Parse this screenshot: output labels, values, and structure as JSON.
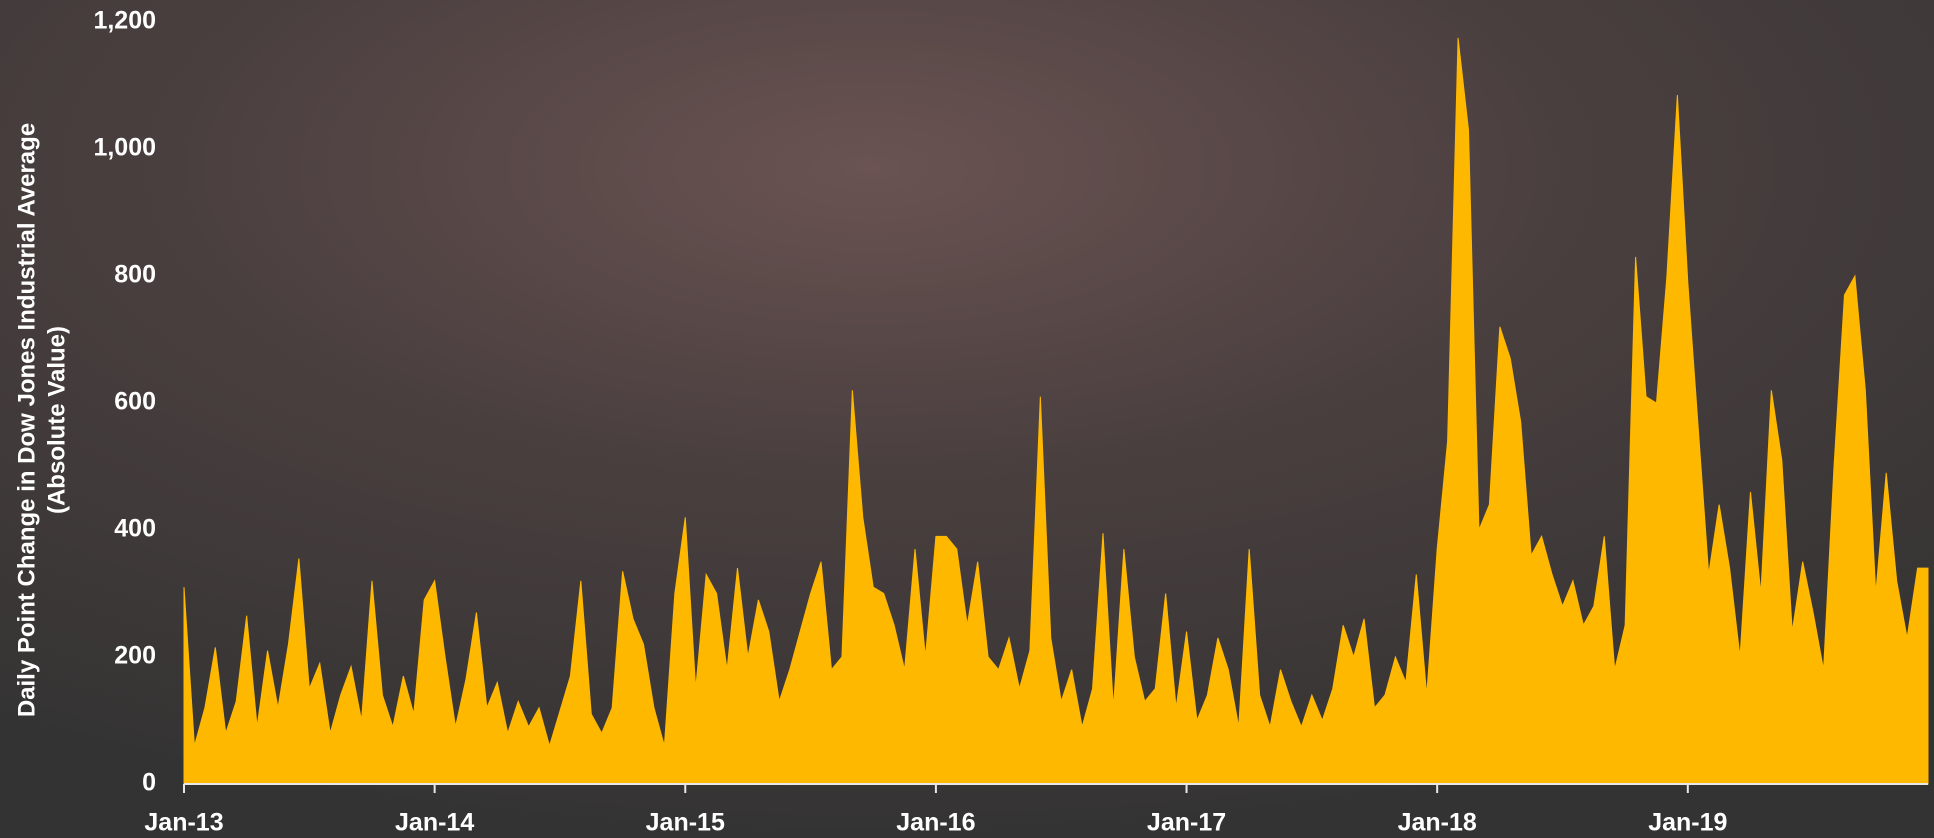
{
  "chart_data": {
    "type": "area",
    "y_label": [
      "Daily Point Change in Dow Jones Industrial Average",
      "(Absolute Value)"
    ],
    "color": "#ffb800",
    "x": [
      0,
      0.5,
      1,
      1.5,
      2,
      2.5,
      3,
      3.5,
      4,
      4.5,
      5,
      5.5,
      6,
      6.5,
      7,
      7.5,
      8,
      8.5,
      9,
      9.5,
      10,
      10.5,
      11,
      11.5,
      12,
      12.5,
      13,
      13.5,
      14,
      14.5,
      15,
      15.5,
      16,
      16.5,
      17,
      17.5,
      18,
      18.5,
      19,
      19.5,
      20,
      20.5,
      21,
      21.5,
      22,
      22.5,
      23,
      23.5,
      24,
      24.5,
      25,
      25.5,
      26,
      26.5,
      27,
      27.5,
      28,
      28.5,
      29,
      29.5,
      30,
      30.5,
      31,
      31.5,
      32,
      32.5,
      33,
      33.5,
      34,
      34.5,
      35,
      35.5,
      36,
      36.5,
      37,
      37.5,
      38,
      38.5,
      39,
      39.5,
      40,
      40.5,
      41,
      41.5,
      42,
      42.5,
      43,
      43.5,
      44,
      44.5,
      45,
      45.5,
      46,
      46.5,
      47,
      47.5,
      48,
      48.5,
      49,
      49.5,
      50,
      50.5,
      51,
      51.5,
      52,
      52.5,
      53,
      53.5,
      54,
      54.5,
      55,
      55.5,
      56,
      56.5,
      57,
      57.5,
      58,
      58.5,
      59,
      59.5,
      60,
      60.5,
      61,
      61.5,
      62,
      62.5,
      63,
      63.5,
      64,
      64.5,
      65,
      65.5,
      66,
      66.5,
      67,
      67.5,
      68,
      68.5,
      69,
      69.5,
      70,
      70.5,
      71,
      71.5,
      72,
      72.5,
      73,
      73.5,
      74,
      74.5,
      75,
      75.5,
      76,
      76.5,
      77,
      77.5,
      78,
      78.5,
      79,
      79.5,
      80,
      80.5,
      81,
      81.5,
      82,
      82.5,
      83,
      83.5
    ],
    "values": [
      310,
      60,
      120,
      215,
      80,
      130,
      265,
      90,
      210,
      120,
      220,
      355,
      150,
      190,
      80,
      140,
      185,
      100,
      320,
      140,
      90,
      170,
      110,
      290,
      320,
      200,
      90,
      165,
      270,
      120,
      160,
      80,
      130,
      90,
      120,
      60,
      115,
      170,
      320,
      110,
      80,
      120,
      335,
      260,
      220,
      120,
      60,
      300,
      420,
      150,
      330,
      300,
      180,
      340,
      200,
      290,
      240,
      130,
      180,
      240,
      300,
      350,
      180,
      200,
      620,
      420,
      310,
      300,
      250,
      180,
      370,
      200,
      390,
      390,
      370,
      250,
      350,
      200,
      180,
      230,
      150,
      210,
      610,
      230,
      130,
      180,
      90,
      150,
      395,
      120,
      370,
      200,
      130,
      150,
      300,
      120,
      240,
      100,
      140,
      230,
      180,
      90,
      370,
      140,
      90,
      180,
      130,
      90,
      140,
      100,
      150,
      250,
      200,
      260,
      120,
      140,
      200,
      160,
      330,
      140,
      370,
      540,
      1175,
      1030,
      400,
      440,
      720,
      670,
      570,
      360,
      390,
      330,
      280,
      320,
      250,
      280,
      390,
      180,
      250,
      830,
      610,
      600,
      800,
      1085,
      790,
      560,
      330,
      440,
      340,
      200,
      460,
      300,
      620,
      510,
      240,
      350,
      270,
      180,
      500,
      770,
      800,
      620,
      300,
      490,
      320,
      230,
      340,
      340
    ],
    "xlim": [
      0,
      83.5
    ],
    "xticks": [
      {
        "value": 0,
        "label": "Jan-13"
      },
      {
        "value": 12,
        "label": "Jan-14"
      },
      {
        "value": 24,
        "label": "Jan-15"
      },
      {
        "value": 36,
        "label": "Jan-16"
      },
      {
        "value": 48,
        "label": "Jan-17"
      },
      {
        "value": 60,
        "label": "Jan-18"
      },
      {
        "value": 72,
        "label": "Jan-19"
      }
    ],
    "ylim": [
      0,
      1200
    ],
    "yticks": [
      0,
      200,
      400,
      600,
      800,
      {
        "value": 1000,
        "label": "1,000"
      },
      {
        "value": 1200,
        "label": "1,200"
      }
    ]
  }
}
